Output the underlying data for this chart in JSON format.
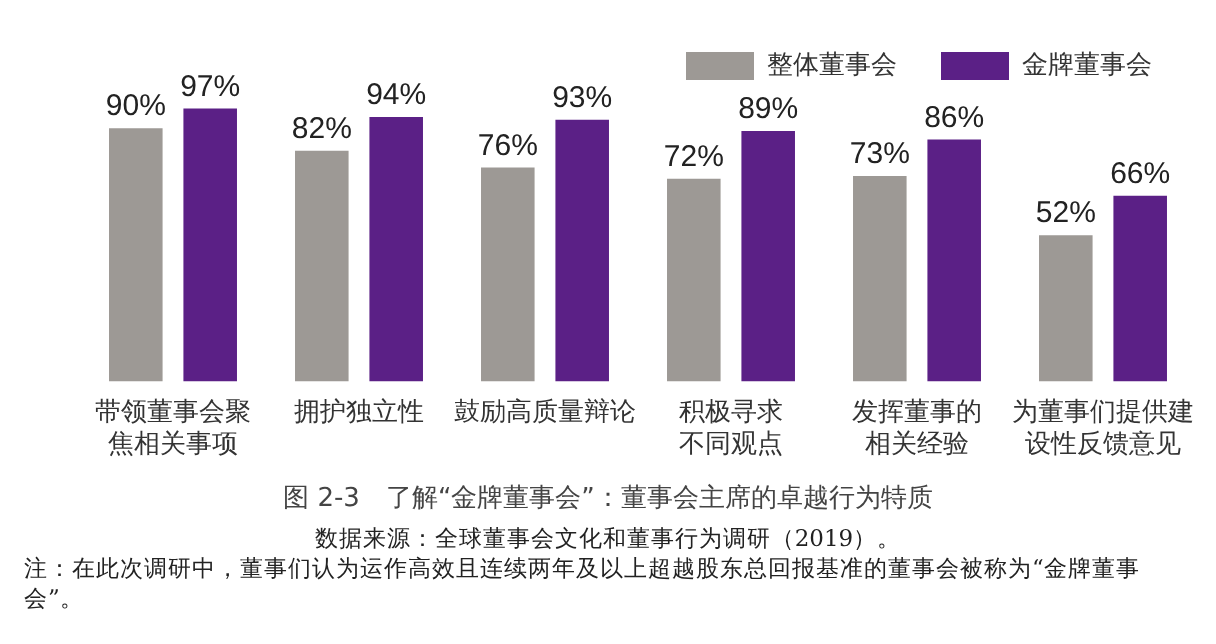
{
  "chart_data": {
    "type": "bar",
    "title": "图 2-3　了解“金牌董事会”：董事会主席的卓越行为特质",
    "categories": [
      "带领董事会聚焦相关事项",
      "拥护独立性",
      "鼓励高质量辩论",
      "积极寻求不同观点",
      "发挥董事的相关经验",
      "为董事们提供建设性反馈意见"
    ],
    "series": [
      {
        "name": "整体董事会",
        "color": "#9d9995",
        "values": [
          90,
          82,
          76,
          72,
          73,
          52
        ],
        "value_labels": [
          "90%",
          "82%",
          "76%",
          "72%",
          "73%",
          "52%"
        ]
      },
      {
        "name": "金牌董事会",
        "color": "#5b2086",
        "values": [
          97,
          94,
          93,
          89,
          86,
          66
        ],
        "value_labels": [
          "97%",
          "94%",
          "93%",
          "89%",
          "86%",
          "66%"
        ]
      }
    ],
    "legend": "top right",
    "grid": false,
    "tick_labels": "x",
    "annotations": [
      "数据来源：全球董事会文化和董事行为调研（2019）。",
      "注：在此次调研中，董事们认为运作高效且连续两年及以上超越股东总回报基准的董事会被称为“金牌董事会”。"
    ]
  }
}
